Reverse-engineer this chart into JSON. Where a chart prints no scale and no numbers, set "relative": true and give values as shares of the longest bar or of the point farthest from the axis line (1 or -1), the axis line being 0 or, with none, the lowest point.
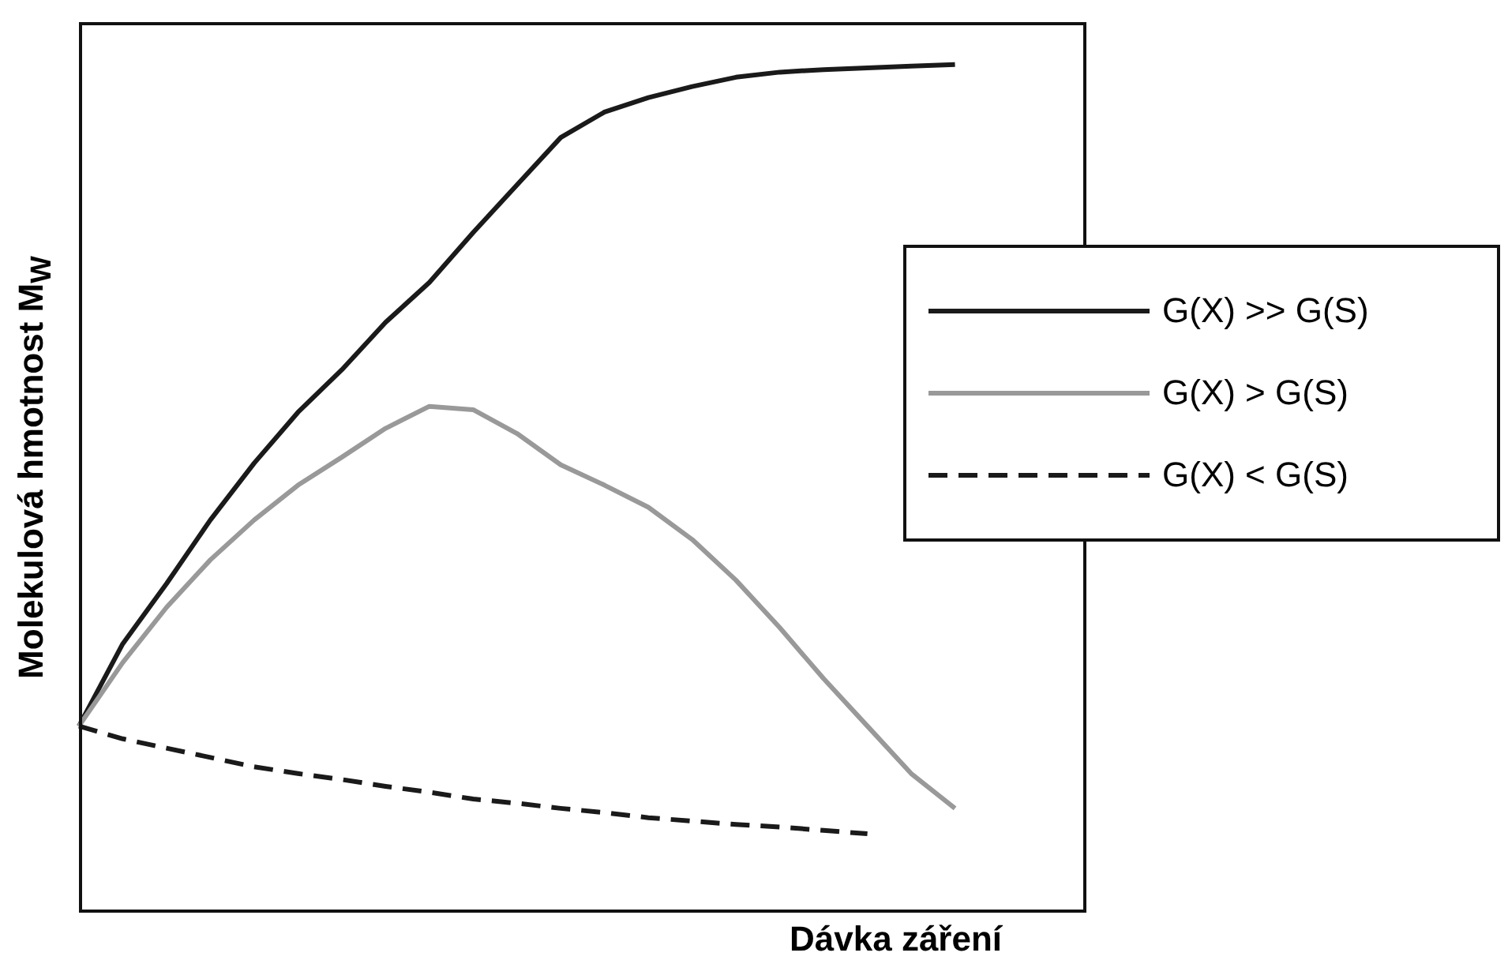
{
  "chart_data": {
    "type": "line",
    "relative": true,
    "xlabel": "Dávka záření",
    "ylabel": "Molekulová hmotnost M$_{W}$",
    "legend": "right",
    "grid": false,
    "tick_labels": false,
    "marker": "none",
    "categories": [
      null,
      null,
      null,
      null,
      null,
      null,
      null,
      null,
      null,
      null,
      null,
      null,
      null,
      null,
      null,
      null,
      null,
      null,
      null,
      null,
      null,
      null,
      null,
      null
    ],
    "series": [
      {
        "name": "G(X) >> G(S)",
        "color": "#1a1a1a",
        "line_style": "solid",
        "values": [
          0.22,
          0.317,
          0.388,
          0.463,
          0.53,
          0.59,
          0.64,
          0.696,
          0.743,
          0.802,
          0.858,
          0.914,
          0.944,
          0.961,
          0.974,
          0.985,
          0.991,
          0.994,
          0.996,
          0.998,
          1,
          null,
          null,
          null
        ]
      },
      {
        "name": "G(X) > G(S)",
        "color": "#999999",
        "line_style": "solid",
        "values": [
          0.22,
          0.295,
          0.36,
          0.416,
          0.463,
          0.504,
          0.537,
          0.571,
          0.597,
          0.593,
          0.565,
          0.528,
          0.504,
          0.478,
          0.44,
          0.392,
          0.336,
          0.276,
          0.22,
          0.164,
          0.123,
          null,
          null,
          null
        ]
      },
      {
        "name": "G(X) < G(S)",
        "color": "#1a1a1a",
        "line_style": "dashed",
        "values": [
          0.22,
          0.205,
          0.194,
          0.183,
          0.172,
          0.164,
          0.157,
          0.149,
          0.142,
          0.134,
          0.129,
          0.123,
          0.118,
          0.112,
          0.108,
          0.104,
          0.101,
          0.097,
          0.093,
          null,
          null,
          null,
          null,
          null
        ]
      }
    ]
  }
}
